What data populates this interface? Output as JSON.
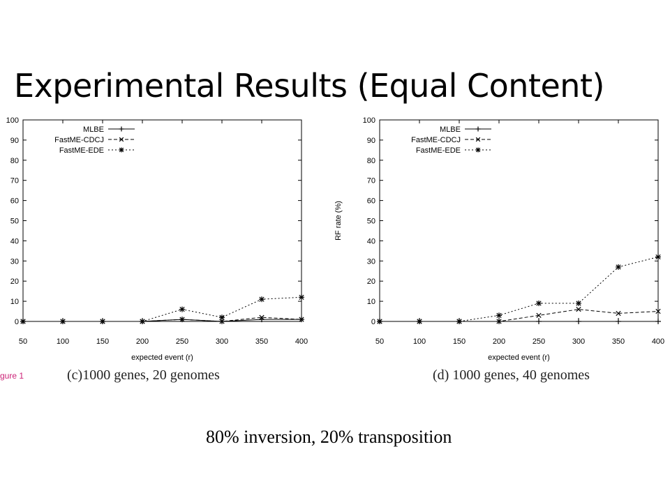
{
  "slide": {
    "title": "Experimental Results (Equal Content)",
    "figure_label": "gure 1",
    "footnote": "80% inversion, 20% transposition"
  },
  "chart_data": [
    {
      "type": "line",
      "caption": "(c)1000 genes, 20 genomes",
      "xlabel": "expected event (r)",
      "ylabel": "",
      "x": [
        50,
        100,
        150,
        200,
        250,
        300,
        350,
        400
      ],
      "xlim": [
        50,
        400
      ],
      "ylim": [
        0,
        100
      ],
      "yticks": [
        0,
        10,
        20,
        30,
        40,
        50,
        60,
        70,
        80,
        90,
        100
      ],
      "legend_position": "top-left",
      "series": [
        {
          "name": "MLBE",
          "marker": "+",
          "dash": "solid",
          "values": [
            0,
            0,
            0,
            0,
            1,
            0,
            1,
            1
          ]
        },
        {
          "name": "FastME-CDCJ",
          "marker": "x",
          "dash": "dashed",
          "values": [
            0,
            0,
            0,
            0,
            1,
            0,
            2,
            1
          ]
        },
        {
          "name": "FastME-EDE",
          "marker": "*",
          "dash": "dotted",
          "values": [
            0,
            0,
            0,
            0,
            6,
            2,
            11,
            12
          ]
        }
      ]
    },
    {
      "type": "line",
      "caption": "(d) 1000 genes, 40 genomes",
      "xlabel": "expected event (r)",
      "ylabel": "RF rate (%)",
      "x": [
        50,
        100,
        150,
        200,
        250,
        300,
        350,
        400
      ],
      "xlim": [
        50,
        400
      ],
      "ylim": [
        0,
        100
      ],
      "yticks": [
        0,
        10,
        20,
        30,
        40,
        50,
        60,
        70,
        80,
        90,
        100
      ],
      "legend_position": "top-left",
      "series": [
        {
          "name": "MLBE",
          "marker": "+",
          "dash": "solid",
          "values": [
            0,
            0,
            0,
            0,
            0,
            0,
            0,
            0
          ]
        },
        {
          "name": "FastME-CDCJ",
          "marker": "x",
          "dash": "dashed",
          "values": [
            0,
            0,
            0,
            0,
            3,
            6,
            4,
            5
          ]
        },
        {
          "name": "FastME-EDE",
          "marker": "*",
          "dash": "dotted",
          "values": [
            0,
            0,
            0,
            3,
            9,
            9,
            27,
            32
          ]
        }
      ]
    }
  ]
}
